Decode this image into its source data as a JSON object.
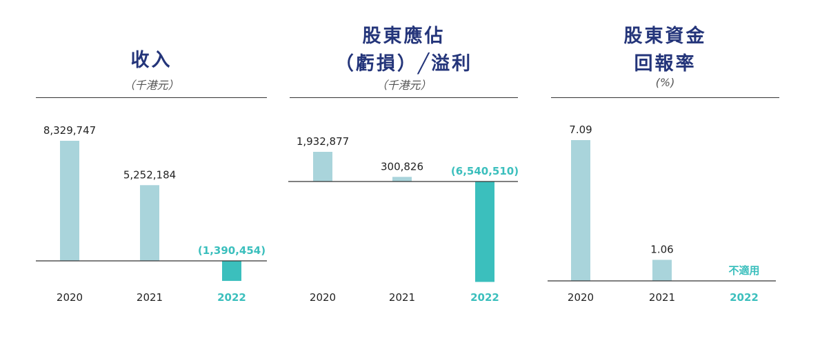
{
  "colors": {
    "title": "#24357a",
    "bar": "#a9d4db",
    "highlight": "#3bbfbd"
  },
  "chart_data": [
    {
      "type": "bar",
      "title_lines": [
        "收入"
      ],
      "unit": "（千港元）",
      "categories": [
        "2020",
        "2021",
        "2022"
      ],
      "values": [
        8329747,
        5252184,
        -1390454
      ],
      "value_labels": [
        "8,329,747",
        "5,252,184",
        "(1,390,454)"
      ],
      "highlight_category": "2022",
      "grid": false
    },
    {
      "type": "bar",
      "title_lines": [
        "股東應佔",
        "（虧損）╱溢利"
      ],
      "unit": "（千港元）",
      "categories": [
        "2020",
        "2021",
        "2022"
      ],
      "values": [
        1932877,
        300826,
        -6540510
      ],
      "value_labels": [
        "1,932,877",
        "300,826",
        "(6,540,510)"
      ],
      "highlight_category": "2022",
      "grid": false
    },
    {
      "type": "bar",
      "title_lines": [
        "股東資金",
        "回報率"
      ],
      "unit": "(%)",
      "categories": [
        "2020",
        "2021",
        "2022"
      ],
      "values": [
        7.09,
        1.06,
        null
      ],
      "value_labels": [
        "7.09",
        "1.06",
        "不適用"
      ],
      "highlight_category": "2022",
      "grid": false
    }
  ]
}
